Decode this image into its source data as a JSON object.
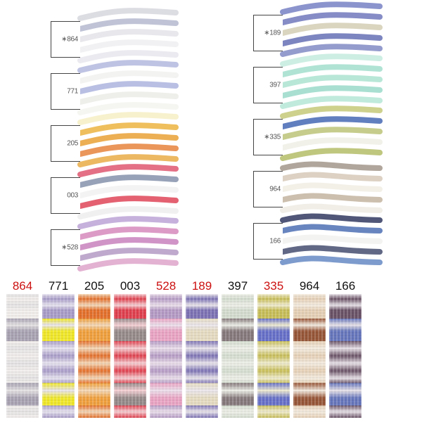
{
  "shade_cards": [
    {
      "label": "∗864",
      "strands": [
        "#d8d8e0",
        "#b8bcd0",
        "#e4e4ea",
        "#f0f0f2",
        "#e8e8ee"
      ]
    },
    {
      "label": "771",
      "strands": [
        "#b8bce0",
        "#f2f2f0",
        "#b0b8e0",
        "#ecece8",
        "#f4f4f0"
      ]
    },
    {
      "label": "205",
      "strands": [
        "#f6f0c8",
        "#ecb84a",
        "#eaa640",
        "#e88a48",
        "#eab050"
      ]
    },
    {
      "label": "003",
      "strands": [
        "#e06078",
        "#8c98b0",
        "#f2f2f2",
        "#e05060",
        "#f0eeee"
      ]
    },
    {
      "label": "∗528",
      "strands": [
        "#c0a8d8",
        "#d890c0",
        "#cc88c0",
        "#b8a0c8",
        "#e0a8cc"
      ]
    },
    {
      "label": "∗189",
      "strands": [
        "#8088c8",
        "#7880c0",
        "#d6d0b8",
        "#6e78b8",
        "#8890c8"
      ]
    },
    {
      "label": "397",
      "strands": [
        "#c8ece0",
        "#a8e0d0",
        "#b0e4d4",
        "#a0dccc",
        "#b8e8d8"
      ]
    },
    {
      "label": "∗335",
      "strands": [
        "#c8cc80",
        "#5070b8",
        "#c0c880",
        "#f0f0e8",
        "#b8c070"
      ]
    },
    {
      "label": "964",
      "strands": [
        "#a89c90",
        "#d8ccbc",
        "#f2eee6",
        "#c8b8a4",
        "#f0ece4"
      ]
    },
    {
      "label": "166",
      "strands": [
        "#3c4468",
        "#5878b8",
        "#f2f2f0",
        "#505878",
        "#7090c8"
      ]
    }
  ],
  "swatches": [
    {
      "number": "864",
      "number_color": "#cc1111",
      "main": "#f2efed",
      "alt": "#e6e3e4",
      "cable": "#a8a2b2"
    },
    {
      "number": "771",
      "number_color": "#111111",
      "main": "#a89cc8",
      "alt": "#e8e4f0",
      "cable": "#f0e828"
    },
    {
      "number": "205",
      "number_color": "#111111",
      "main": "#e4702c",
      "alt": "#f4d8b8",
      "cable": "#f0a03c"
    },
    {
      "number": "003",
      "number_color": "#111111",
      "main": "#e0404e",
      "alt": "#f6d0d4",
      "cable": "#968a8a"
    },
    {
      "number": "528",
      "number_color": "#cc1111",
      "main": "#b49ac4",
      "alt": "#ece0ec",
      "cable": "#eaa4c4"
    },
    {
      "number": "189",
      "number_color": "#cc1111",
      "main": "#7c72b4",
      "alt": "#ebe6ec",
      "cable": "#e6dcc2"
    },
    {
      "number": "397",
      "number_color": "#111111",
      "main": "#d4dccf",
      "alt": "#eef0e8",
      "cable": "#86797c"
    },
    {
      "number": "335",
      "number_color": "#cc1111",
      "main": "#c8be58",
      "alt": "#f0ecd0",
      "cable": "#6670c8"
    },
    {
      "number": "964",
      "number_color": "#111111",
      "main": "#e6d0b6",
      "alt": "#f4ece0",
      "cable": "#985638"
    },
    {
      "number": "166",
      "number_color": "#111111",
      "main": "#6a5266",
      "alt": "#e8e2e8",
      "cable": "#6676bc"
    }
  ]
}
